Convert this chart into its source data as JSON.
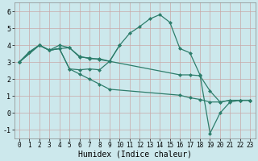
{
  "line_color": "#2d7d6b",
  "bg_color": "#cce8ec",
  "grid_color": "#b0d4d8",
  "xlabel": "Humidex (Indice chaleur)",
  "xlim": [
    -0.5,
    23.5
  ],
  "ylim": [
    -1.5,
    6.5
  ],
  "yticks": [
    -1,
    0,
    1,
    2,
    3,
    4,
    5,
    6
  ],
  "xticks": [
    0,
    1,
    2,
    3,
    4,
    5,
    6,
    7,
    8,
    9,
    10,
    11,
    12,
    13,
    14,
    15,
    16,
    17,
    18,
    19,
    20,
    21,
    22,
    23
  ],
  "line1_x": [
    0,
    1,
    2,
    3,
    4,
    5,
    6,
    7,
    8,
    9,
    10,
    11,
    12,
    13,
    14,
    15,
    16,
    17,
    18,
    19,
    20,
    21,
    22,
    23
  ],
  "line1_y": [
    3.0,
    3.6,
    4.0,
    3.7,
    3.8,
    3.85,
    3.35,
    3.2,
    3.2,
    3.05,
    4.0,
    4.7,
    5.1,
    5.55,
    5.8,
    5.35,
    3.8,
    3.55,
    2.25,
    -1.2,
    0.0,
    0.65,
    0.75,
    0.75
  ],
  "line2_x": [
    0,
    1,
    2,
    3,
    4,
    5,
    6,
    7,
    8,
    9,
    10
  ],
  "line2_y": [
    3.0,
    3.6,
    4.0,
    3.7,
    4.0,
    3.85,
    3.3,
    3.25,
    3.15,
    3.05,
    4.0
  ],
  "line3_x": [
    0,
    2,
    3,
    4,
    5,
    6,
    7,
    8,
    9,
    16,
    17,
    18,
    19,
    20,
    21,
    22,
    23
  ],
  "line3_y": [
    3.0,
    4.0,
    3.7,
    3.8,
    2.6,
    2.55,
    2.6,
    2.55,
    3.05,
    2.25,
    2.25,
    2.2,
    1.3,
    0.65,
    0.75,
    0.75,
    0.75
  ],
  "line4_x": [
    0,
    2,
    3,
    4,
    5,
    6,
    7,
    8,
    9,
    16,
    17,
    18,
    19,
    20,
    21,
    22,
    23
  ],
  "line4_y": [
    3.0,
    4.0,
    3.7,
    3.8,
    2.6,
    2.3,
    2.0,
    1.7,
    1.4,
    1.05,
    0.9,
    0.8,
    0.65,
    0.65,
    0.75,
    0.75,
    0.75
  ],
  "tick_fontsize": 5.5,
  "xlabel_fontsize": 7
}
